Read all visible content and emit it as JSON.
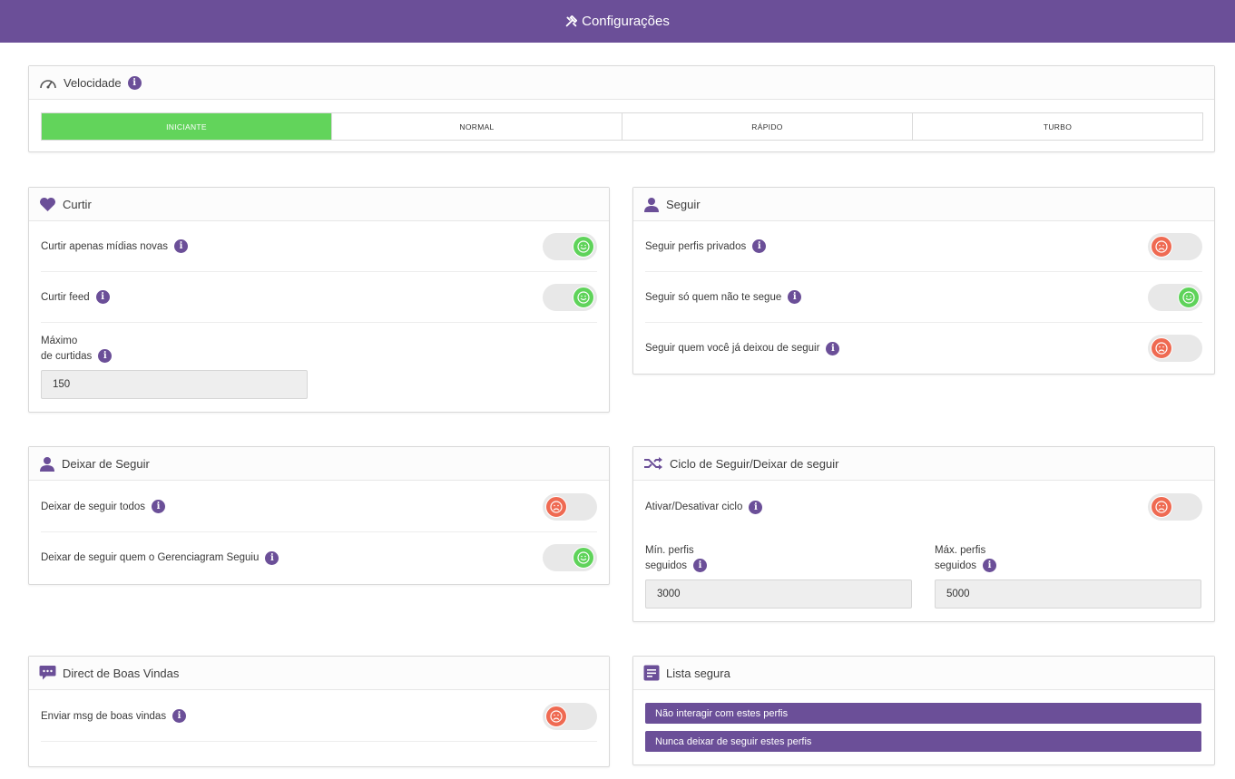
{
  "header": {
    "title": "Configurações",
    "icon": "tools-icon"
  },
  "velocidade": {
    "title": "Velocidade",
    "options": [
      "INICIANTE",
      "NORMAL",
      "RÁPIDO",
      "TURBO"
    ],
    "selected": "INICIANTE"
  },
  "curtir": {
    "title": "Curtir",
    "rows": [
      {
        "label": "Curtir apenas mídias novas",
        "state": "on"
      },
      {
        "label": "Curtir feed",
        "state": "on"
      }
    ],
    "max_label_1": "Máximo",
    "max_label_2": "de curtidas",
    "max_value": "150"
  },
  "seguir": {
    "title": "Seguir",
    "rows": [
      {
        "label": "Seguir perfis privados",
        "state": "off"
      },
      {
        "label": "Seguir só quem não te segue",
        "state": "on"
      },
      {
        "label": "Seguir quem você já deixou de seguir",
        "state": "off"
      }
    ]
  },
  "deixar": {
    "title": "Deixar de Seguir",
    "rows": [
      {
        "label": "Deixar de seguir todos",
        "state": "off"
      },
      {
        "label": "Deixar de seguir quem o Gerenciagram Seguiu",
        "state": "on"
      }
    ]
  },
  "ciclo": {
    "title": "Ciclo de Seguir/Deixar de seguir",
    "rows": [
      {
        "label": "Ativar/Desativar ciclo",
        "state": "off"
      }
    ],
    "min_label_1": "Mín. perfis",
    "min_label_2": "seguidos",
    "min_value": "3000",
    "max_label_1": "Máx. perfis",
    "max_label_2": "seguidos",
    "max_value": "5000"
  },
  "direct": {
    "title": "Direct de Boas Vindas",
    "rows": [
      {
        "label": "Enviar msg de boas vindas",
        "state": "off"
      }
    ]
  },
  "lista": {
    "title": "Lista segura",
    "buttons": [
      "Não interagir com estes perfis",
      "Nunca deixar de seguir estes perfis"
    ]
  },
  "colors": {
    "primary": "#6b4f98",
    "on": "#5fd35a",
    "off": "#ef6a52",
    "active_speed": "#62d45b"
  }
}
